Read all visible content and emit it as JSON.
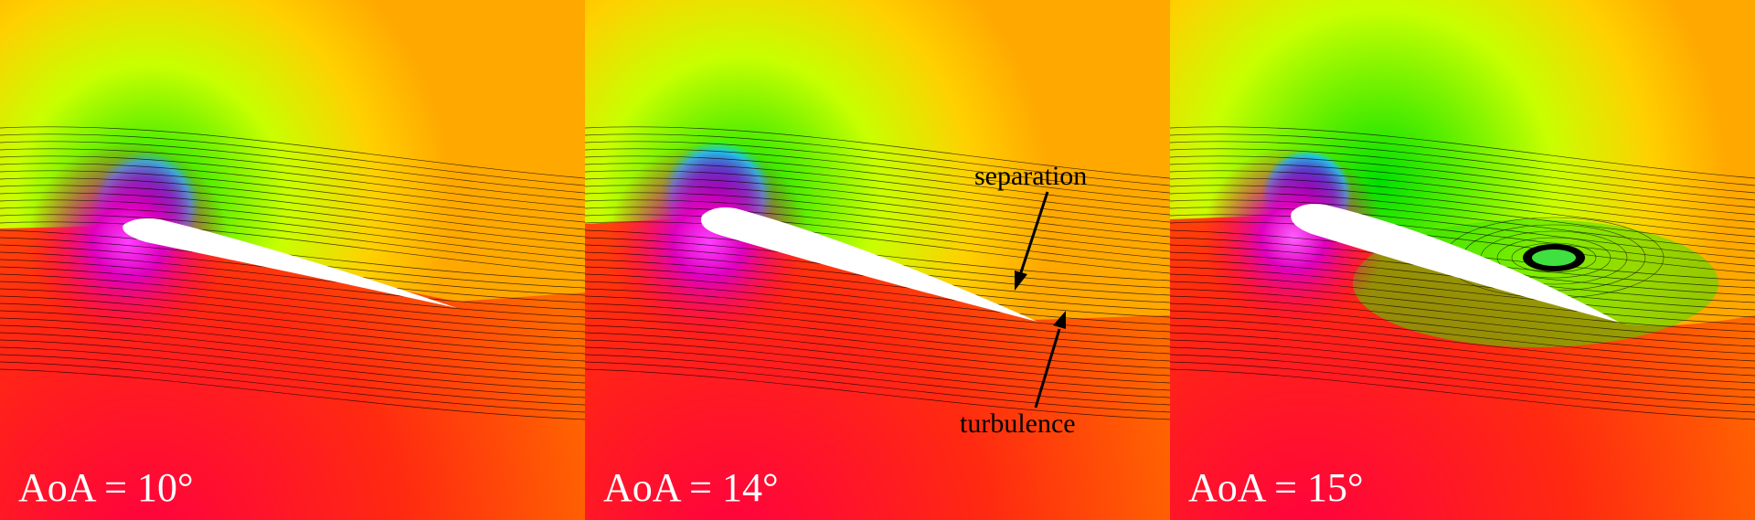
{
  "panels": [
    {
      "label": "AoA = 10°",
      "aoa_deg": 10
    },
    {
      "label": "AoA = 14°",
      "aoa_deg": 14
    },
    {
      "label": "AoA = 15°",
      "aoa_deg": 15
    }
  ],
  "annotations": {
    "separation": "separation",
    "turbulence": "turbulence"
  },
  "colors": {
    "low_pressure": "#1a00ff",
    "suction": "#00e000",
    "freestream": "#ffb000",
    "high_pressure": "#ff1a10",
    "stagnation": "#d000ff",
    "airfoil": "#ffffff",
    "streamlines": "#000000"
  }
}
